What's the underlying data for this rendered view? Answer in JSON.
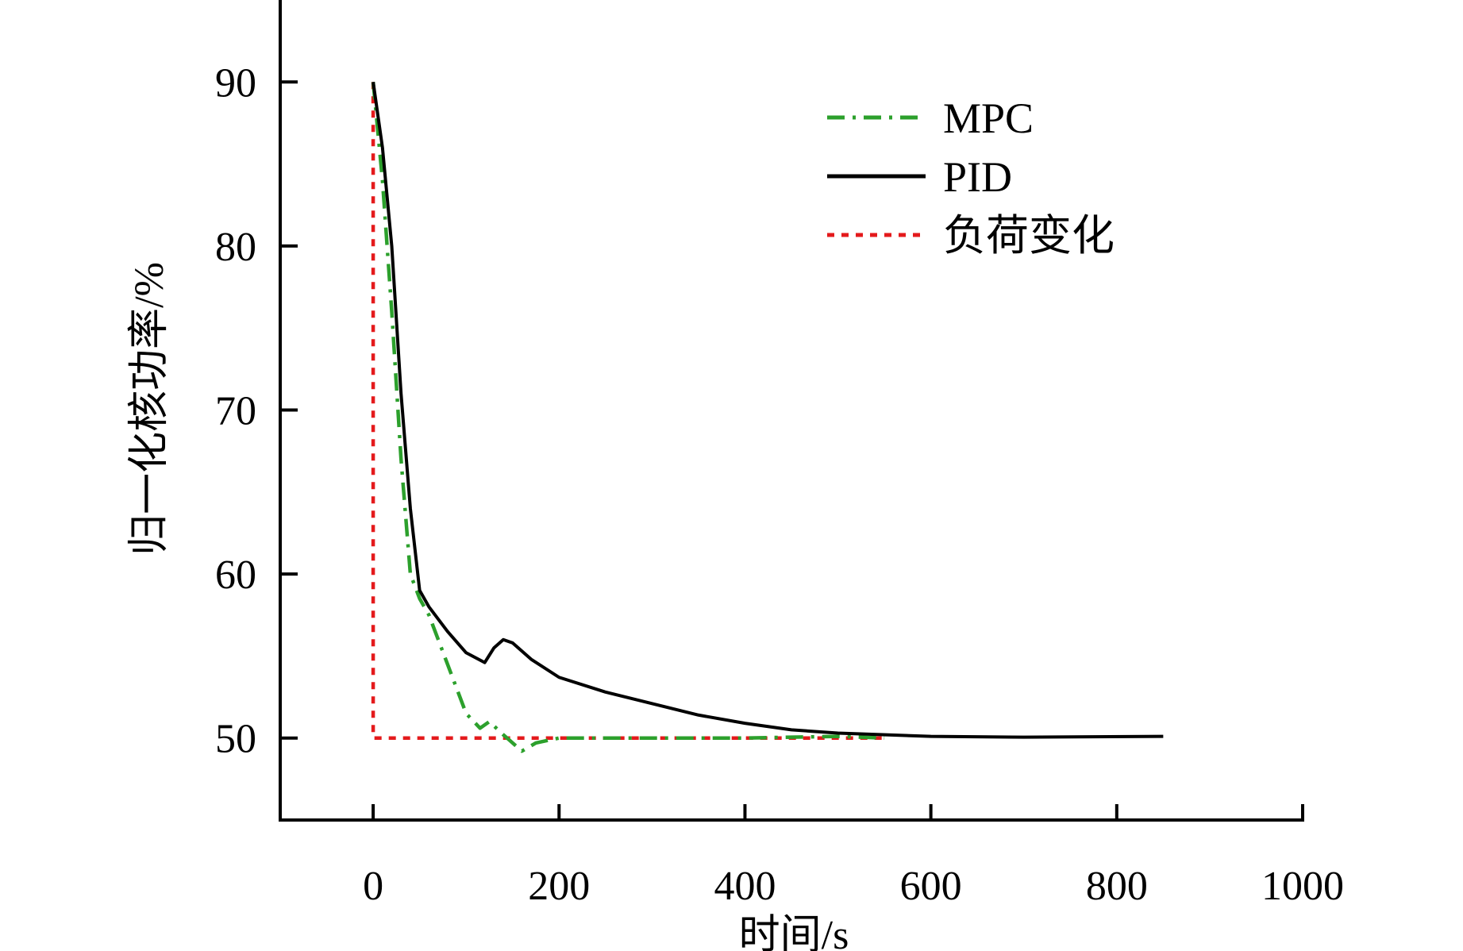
{
  "chart_data": {
    "type": "line",
    "title": "",
    "xlabel": "时间/s",
    "ylabel": "归一化核功率/%",
    "xlim": [
      -100,
      1000
    ],
    "ylim": [
      45,
      95
    ],
    "xticks": [
      "0",
      "200",
      "400",
      "600",
      "800",
      "1000"
    ],
    "xtick_values": [
      0,
      200,
      400,
      600,
      800,
      1000
    ],
    "yticks": [
      "50",
      "60",
      "70",
      "80",
      "90"
    ],
    "ytick_values": [
      50,
      60,
      70,
      80,
      90
    ],
    "grid": false,
    "legend_position": "top-right",
    "series": [
      {
        "name": "MPC",
        "color": "#2ca02c",
        "style": "dashdot",
        "x": [
          0,
          10,
          20,
          30,
          40,
          50,
          60,
          80,
          100,
          115,
          125,
          140,
          160,
          175,
          200,
          300,
          400,
          500,
          550
        ],
        "y": [
          90,
          84,
          76,
          67,
          60,
          58.5,
          57.5,
          54.5,
          51.5,
          50.6,
          51,
          50.2,
          49.2,
          49.7,
          50,
          50,
          50,
          50.1,
          50
        ]
      },
      {
        "name": "PID",
        "color": "#000000",
        "style": "solid",
        "x": [
          0,
          10,
          20,
          30,
          40,
          50,
          60,
          80,
          100,
          120,
          130,
          140,
          150,
          170,
          200,
          250,
          300,
          350,
          400,
          450,
          500,
          600,
          700,
          850
        ],
        "y": [
          90,
          86,
          80,
          71,
          64,
          59,
          58,
          56.5,
          55.2,
          54.6,
          55.5,
          56,
          55.8,
          54.8,
          53.7,
          52.8,
          52.1,
          51.4,
          50.9,
          50.5,
          50.3,
          50.1,
          50.05,
          50.1
        ]
      },
      {
        "name": "负荷变化",
        "color": "#e41a1c",
        "style": "dotted",
        "x": [
          0,
          0,
          550
        ],
        "y": [
          90,
          50,
          50
        ]
      }
    ]
  }
}
